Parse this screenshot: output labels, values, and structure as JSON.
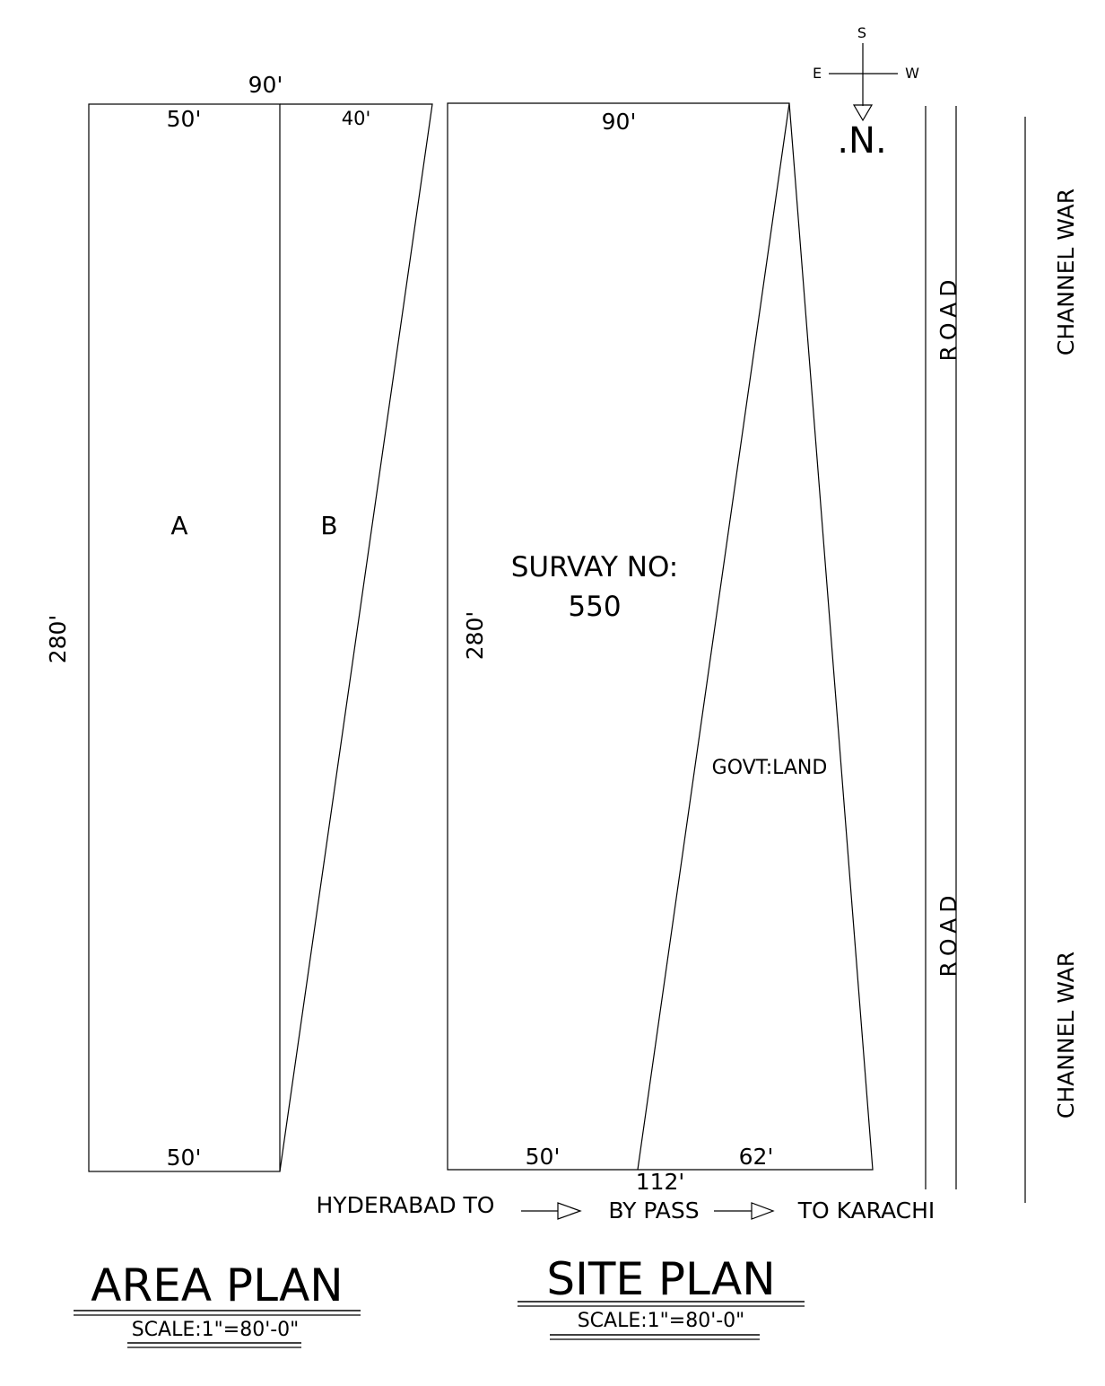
{
  "area_plan": {
    "top_total": "90'",
    "top_a": "50'",
    "top_b": "40'",
    "left_side": "280'",
    "bottom_a": "50'",
    "plot_a": "A",
    "plot_b": "B",
    "title": "AREA PLAN",
    "scale": "SCALE:1\"=80'-0\""
  },
  "site_plan": {
    "top": "90'",
    "left_side": "280'",
    "survey_label": "SURVAY NO:",
    "survey_number": "550",
    "govt_land": "GOVT:LAND",
    "bottom_left": "50'",
    "bottom_right": "62'",
    "bottom_total": "112'",
    "title": "SITE PLAN",
    "scale": "SCALE:1\"=80'-0\""
  },
  "compass": {
    "s": "S",
    "e": "E",
    "w": "W",
    "n": ".N."
  },
  "road": {
    "upper": "ROAD",
    "lower": "ROAD"
  },
  "channel": {
    "upper": "CHANNEL WAR",
    "lower": "CHANNEL WAR"
  },
  "route": {
    "from": "HYDERABAD TO",
    "via": "BY PASS",
    "to": "TO KARACHI"
  }
}
